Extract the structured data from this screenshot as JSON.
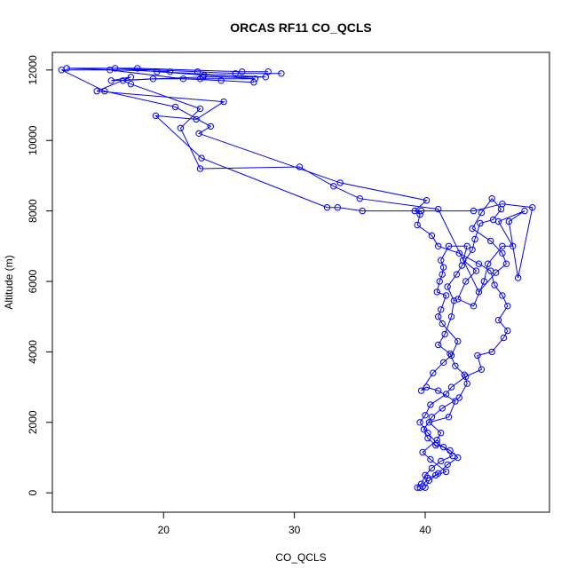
{
  "chart_data": {
    "type": "line",
    "title": "ORCAS RF11 CO_QCLS",
    "xlabel": "CO_QCLS",
    "ylabel": "Altitude (m)",
    "xlim": [
      11.5,
      49.5
    ],
    "ylim": [
      -550,
      12500
    ],
    "x_ticks": [
      20,
      30,
      40
    ],
    "y_ticks": [
      0,
      2000,
      4000,
      6000,
      8000,
      10000,
      12000
    ],
    "grid": false,
    "series_color": "#0000ff",
    "marker": "open-circle",
    "series": [
      {
        "x": [
          39.6,
          39.8,
          40.2,
          40.8,
          41.6,
          40.4,
          39.8,
          40.9,
          41.2,
          40.3,
          41.8,
          42.3,
          41.0,
          40.1,
          39.7,
          40.6,
          41.4,
          42.0,
          42.5,
          41.3,
          41.0,
          41.2,
          41.6,
          40.9,
          41.1,
          41.3,
          41.4,
          41.2,
          41.8,
          43.2,
          42.9,
          43.9,
          43.1,
          42.5,
          43.7,
          44.5,
          44.8,
          45.9,
          46.7,
          45.6,
          47.6,
          46.4,
          47.1,
          48.2,
          45.9,
          43.7,
          39.7,
          35.2,
          33.3,
          32.5,
          22.9,
          19.4,
          22.5,
          24.6,
          14.9,
          17.5,
          16.0,
          23.0,
          27.8,
          19.5,
          20.5,
          12.6,
          18.0,
          26.0,
          28.0
        ],
        "y": [
          150,
          180,
          420,
          500,
          600,
          950,
          1150,
          1500,
          1700,
          2000,
          2150,
          2600,
          2900,
          3000,
          2900,
          3400,
          3700,
          3900,
          4300,
          4800,
          5000,
          5200,
          5600,
          5700,
          6000,
          6200,
          6400,
          6600,
          7000,
          7000,
          6600,
          6300,
          6000,
          5500,
          5300,
          6000,
          6500,
          7000,
          7000,
          7700,
          8000,
          7700,
          6100,
          8100,
          8200,
          8000,
          8000,
          8000,
          8100,
          8100,
          9500,
          10700,
          10600,
          11100,
          11400,
          11800,
          11700,
          11800,
          11800,
          11950,
          11950,
          12050,
          12050,
          11950,
          11950
        ]
      },
      {
        "x": [
          39.4,
          39.7,
          40.0,
          40.5,
          41.2,
          42.1,
          41.4,
          40.8,
          40.2,
          39.9,
          40.5,
          41.3,
          42.6,
          43.2,
          43.0,
          42.3,
          41.9,
          41.0,
          41.5,
          42.0,
          42.2,
          41.7,
          42.4,
          42.8,
          43.6,
          43.8,
          44.2,
          45.2,
          45.8,
          45.1,
          44.3,
          43.6,
          45.0,
          45.9,
          46.2,
          45.4,
          44.1,
          41.0,
          35.0,
          33.0,
          30.4,
          22.8,
          21.3,
          22.8,
          17.5,
          16.9,
          19.2,
          22.8,
          27.0,
          23.1,
          16.3,
          22.6,
          25.5,
          29.0
        ],
        "y": [
          150,
          250,
          500,
          700,
          900,
          1050,
          1300,
          1350,
          1550,
          1800,
          2150,
          2400,
          2700,
          3100,
          3350,
          3600,
          3950,
          4200,
          4500,
          5000,
          5450,
          5850,
          6200,
          6450,
          6900,
          7200,
          7650,
          7750,
          8050,
          8350,
          7950,
          7500,
          7150,
          6800,
          6500,
          6250,
          5700,
          8050,
          8350,
          8700,
          9250,
          9200,
          10350,
          10900,
          11600,
          11700,
          11750,
          11750,
          11750,
          11850,
          12050,
          11950,
          11900,
          11900
        ]
      },
      {
        "x": [
          40.0,
          40.3,
          41.0,
          41.7,
          42.5,
          41.9,
          40.9,
          40.2,
          39.6,
          40.0,
          40.4,
          41.6,
          42.0,
          43.1,
          44.3,
          44.0,
          45.1,
          46.0,
          46.3,
          45.6,
          46.3,
          45.9,
          45.3,
          45.0,
          44.1,
          42.6,
          41.0,
          40.5,
          39.4,
          39.6,
          39.2,
          40.1,
          33.5,
          22.7,
          23.6,
          20.9,
          15.5,
          12.2,
          15.9,
          21.5,
          24.4,
          26.9
        ],
        "y": [
          150,
          350,
          550,
          800,
          1000,
          1200,
          1400,
          1700,
          2000,
          2200,
          2500,
          2800,
          3000,
          3300,
          3500,
          3900,
          4000,
          4400,
          4600,
          4900,
          5300,
          5600,
          5900,
          6300,
          6500,
          6800,
          7000,
          7300,
          7600,
          7900,
          8000,
          8300,
          8800,
          10200,
          10400,
          10950,
          11400,
          12000,
          12000,
          11750,
          11700,
          11650
        ]
      }
    ]
  }
}
